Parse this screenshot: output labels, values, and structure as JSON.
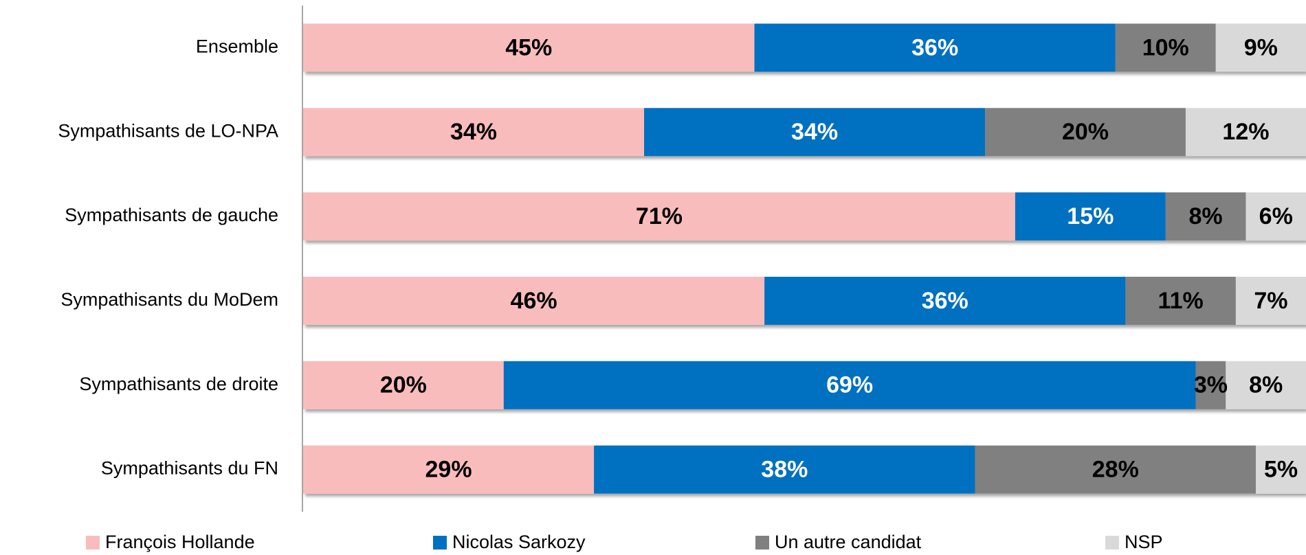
{
  "chart_data": {
    "type": "stacked_bar_horizontal",
    "categories": [
      "Ensemble",
      "Sympathisants de LO-NPA",
      "Sympathisants de gauche",
      "Sympathisants du MoDem",
      "Sympathisants de droite",
      "Sympathisants du FN"
    ],
    "series": [
      {
        "name": "François Hollande",
        "color": "#f9bcbc",
        "values": [
          45,
          34,
          71,
          46,
          20,
          29
        ],
        "value_labels": [
          "45%",
          "34%",
          "71%",
          "46%",
          "20%",
          "29%"
        ]
      },
      {
        "name": "Nicolas Sarkozy",
        "color": "#0070c0",
        "values": [
          36,
          34,
          15,
          36,
          69,
          38
        ],
        "value_labels": [
          "36%",
          "34%",
          "15%",
          "36%",
          "69%",
          "38%"
        ]
      },
      {
        "name": "Un autre candidat",
        "color": "#808080",
        "values": [
          10,
          20,
          8,
          11,
          3,
          28
        ],
        "value_labels": [
          "10%",
          "20%",
          "8%",
          "11%",
          "3%",
          "28%"
        ]
      },
      {
        "name": "NSP",
        "color": "#d9d9d9",
        "values": [
          9,
          12,
          6,
          7,
          8,
          5
        ],
        "value_labels": [
          "9%",
          "12%",
          "6%",
          "7%",
          "8%",
          "5%"
        ]
      }
    ],
    "legend": "bottom"
  }
}
